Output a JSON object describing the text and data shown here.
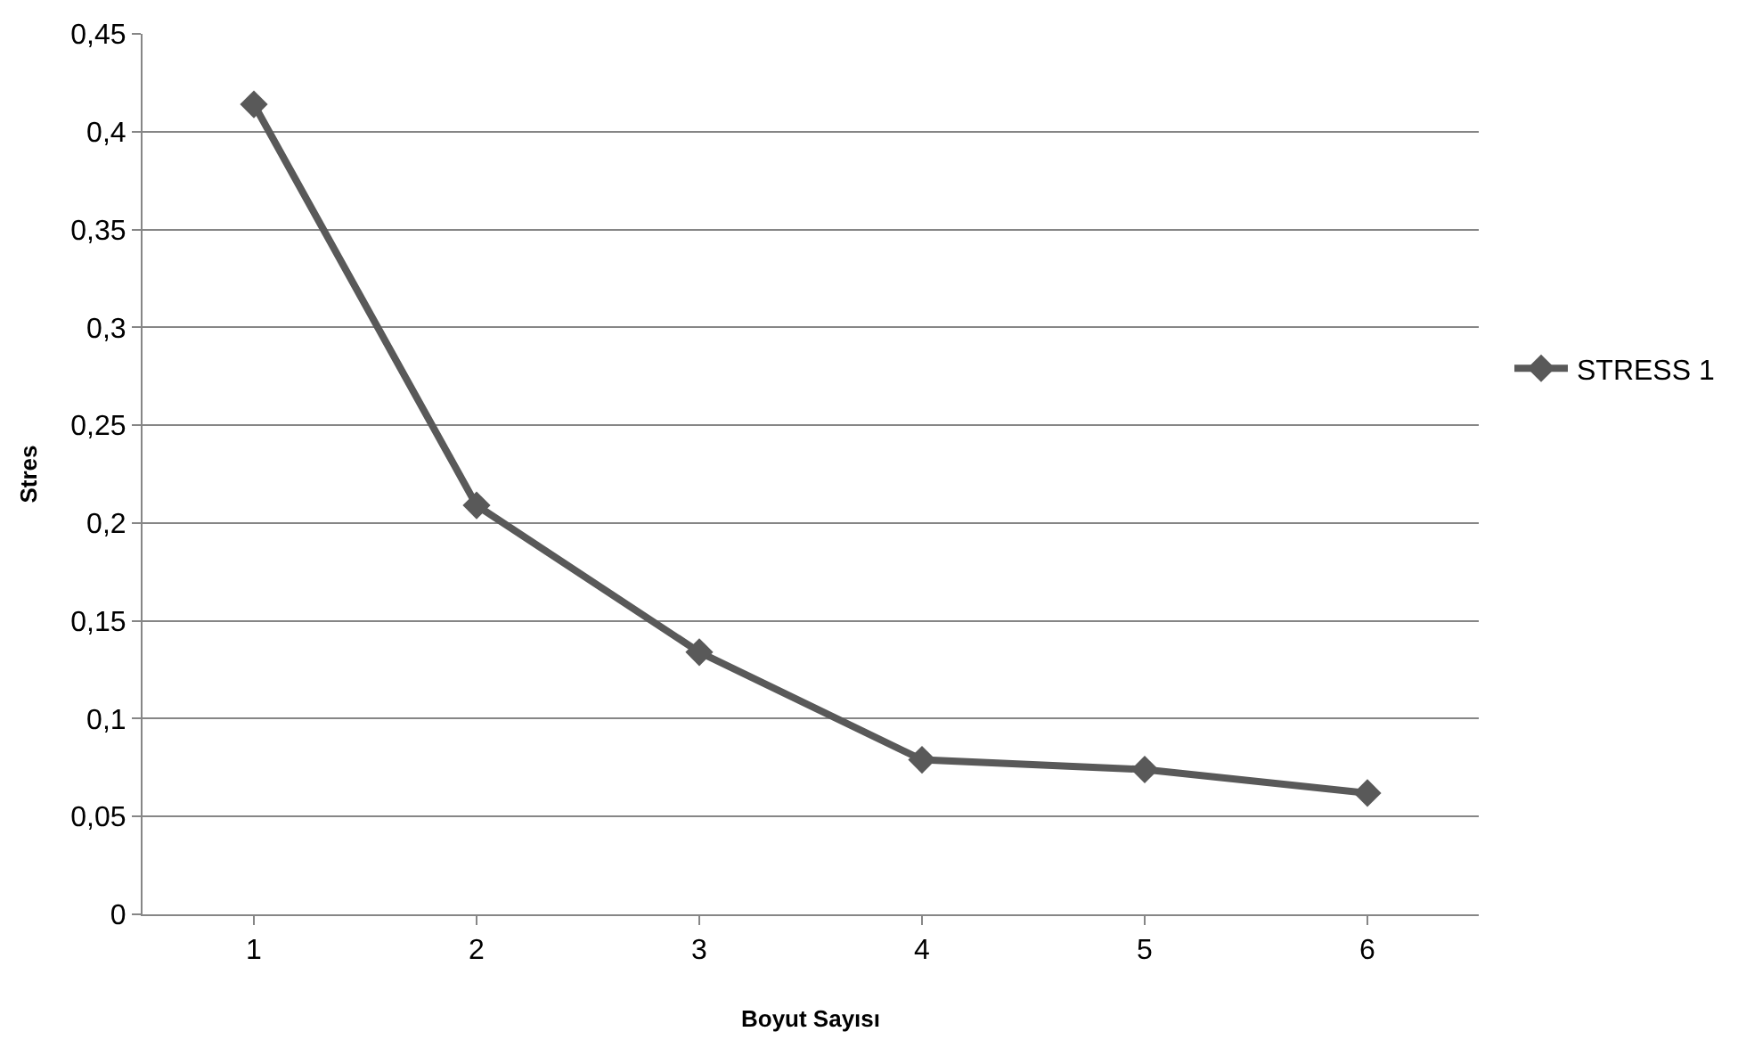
{
  "chart_data": {
    "type": "line",
    "xlabel": "Boyut Sayısı",
    "ylabel": "Stres",
    "categories": [
      "1",
      "2",
      "3",
      "4",
      "5",
      "6"
    ],
    "series": [
      {
        "name": "STRESS 1",
        "color": "#595959",
        "values": [
          0.414,
          0.209,
          0.134,
          0.079,
          0.074,
          0.062
        ]
      }
    ],
    "ylim": [
      0,
      0.45
    ],
    "yticks": [
      0,
      {
        "value": 0.05,
        "label": "0,05"
      },
      {
        "value": 0.1,
        "label": "0,1"
      },
      {
        "value": 0.15,
        "label": "0,15"
      },
      {
        "value": 0.2,
        "label": "0,2"
      },
      {
        "value": 0.25,
        "label": "0,25"
      },
      {
        "value": 0.3,
        "label": "0,3"
      },
      {
        "value": 0.35,
        "label": "0,35"
      },
      {
        "value": 0.4,
        "label": "0,4"
      },
      {
        "value": 0.45,
        "label": "0,45"
      }
    ],
    "grid": "y",
    "legend": "right",
    "marker": "diamond",
    "line_style": "solid"
  }
}
